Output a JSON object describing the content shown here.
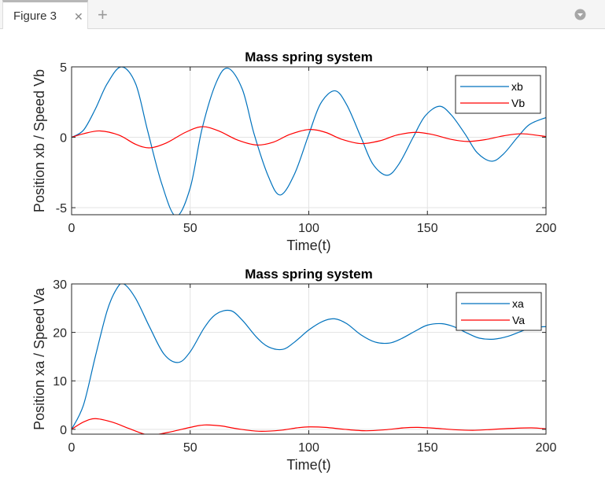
{
  "tab": {
    "label": "Figure 3",
    "close_icon": "close-icon",
    "add_icon": "plus-icon",
    "menu_icon": "chevron-down-circle-icon"
  },
  "chart_data": [
    {
      "type": "line",
      "title": "Mass spring system",
      "xlabel": "Time(t)",
      "ylabel": "Position xb / Speed Vb",
      "xlim": [
        0,
        200
      ],
      "ylim": [
        -5.5,
        5
      ],
      "xticks": [
        0,
        50,
        100,
        150,
        200
      ],
      "yticks": [
        -5,
        0,
        5
      ],
      "xtick_labels": [
        "0",
        "50",
        "100",
        "150",
        "200"
      ],
      "ytick_labels": [
        "-5",
        "0",
        "5"
      ],
      "grid": true,
      "legend_position": "top-right",
      "series": [
        {
          "name": "xb",
          "color": "#0072BD",
          "x": [
            0,
            5,
            10,
            15,
            21,
            27,
            32,
            38,
            44,
            50,
            55,
            61,
            66,
            72,
            77,
            83,
            88,
            94,
            100,
            105,
            111,
            116,
            122,
            127,
            133,
            138,
            144,
            149,
            155,
            160,
            166,
            171,
            177,
            182,
            188,
            193,
            200
          ],
          "y": [
            0,
            0.5,
            2.0,
            3.8,
            5.0,
            3.8,
            0.5,
            -3.3,
            -5.6,
            -3.6,
            0.6,
            3.9,
            4.9,
            3.4,
            0.2,
            -2.8,
            -4.1,
            -2.6,
            0.2,
            2.4,
            3.3,
            2.3,
            0.0,
            -1.9,
            -2.7,
            -1.9,
            0.0,
            1.5,
            2.2,
            1.6,
            0.2,
            -1.1,
            -1.7,
            -1.2,
            0.0,
            0.9,
            1.4
          ]
        },
        {
          "name": "Vb",
          "color": "#FF0000",
          "x": [
            0,
            5,
            12,
            20,
            27,
            33,
            40,
            48,
            55,
            62,
            70,
            78,
            85,
            92,
            100,
            107,
            114,
            122,
            130,
            137,
            145,
            152,
            160,
            167,
            175,
            182,
            190,
            200
          ],
          "y": [
            0,
            0.25,
            0.45,
            0.15,
            -0.5,
            -0.75,
            -0.4,
            0.35,
            0.75,
            0.45,
            -0.2,
            -0.55,
            -0.35,
            0.2,
            0.55,
            0.35,
            -0.15,
            -0.45,
            -0.25,
            0.15,
            0.35,
            0.2,
            -0.15,
            -0.3,
            -0.15,
            0.1,
            0.25,
            0.05
          ]
        }
      ]
    },
    {
      "type": "line",
      "title": "Mass spring system",
      "xlabel": "Time(t)",
      "ylabel": "Position xa / Speed Va",
      "xlim": [
        0,
        200
      ],
      "ylim": [
        -1,
        30
      ],
      "xticks": [
        0,
        50,
        100,
        150,
        200
      ],
      "yticks": [
        0,
        10,
        20,
        30
      ],
      "xtick_labels": [
        "0",
        "50",
        "100",
        "150",
        "200"
      ],
      "ytick_labels": [
        "0",
        "10",
        "20",
        "30"
      ],
      "grid": true,
      "legend_position": "top-right",
      "series": [
        {
          "name": "xa",
          "color": "#0072BD",
          "x": [
            0,
            5,
            10,
            15,
            19,
            22,
            27,
            33,
            39,
            45,
            50,
            56,
            61,
            67,
            72,
            78,
            83,
            89,
            94,
            100,
            106,
            111,
            116,
            122,
            128,
            134,
            139,
            145,
            150,
            156,
            161,
            167,
            172,
            178,
            184,
            190,
            195,
            200
          ],
          "y": [
            0,
            5,
            15,
            24.5,
            29,
            30,
            27,
            21,
            15.5,
            13.8,
            16,
            21,
            23.8,
            24.5,
            22.5,
            19,
            17,
            16.5,
            18,
            20.5,
            22.3,
            22.8,
            21.8,
            19.5,
            18,
            17.8,
            18.7,
            20.3,
            21.5,
            21.8,
            21.2,
            19.8,
            18.8,
            18.6,
            19.2,
            20.3,
            21,
            21.2
          ]
        },
        {
          "name": "Va",
          "color": "#FF0000",
          "x": [
            0,
            5,
            10,
            17,
            24,
            30,
            34,
            42,
            50,
            56,
            63,
            70,
            79,
            88,
            95,
            100,
            107,
            115,
            124,
            132,
            140,
            146,
            154,
            162,
            170,
            178,
            186,
            194,
            200
          ],
          "y": [
            0,
            1.5,
            2.2,
            1.5,
            0.2,
            -0.9,
            -1.2,
            -0.5,
            0.4,
            0.9,
            0.7,
            0.1,
            -0.4,
            -0.2,
            0.3,
            0.5,
            0.4,
            0.0,
            -0.3,
            -0.1,
            0.3,
            0.4,
            0.2,
            -0.1,
            -0.2,
            0.0,
            0.2,
            0.3,
            0.1
          ]
        }
      ]
    }
  ]
}
